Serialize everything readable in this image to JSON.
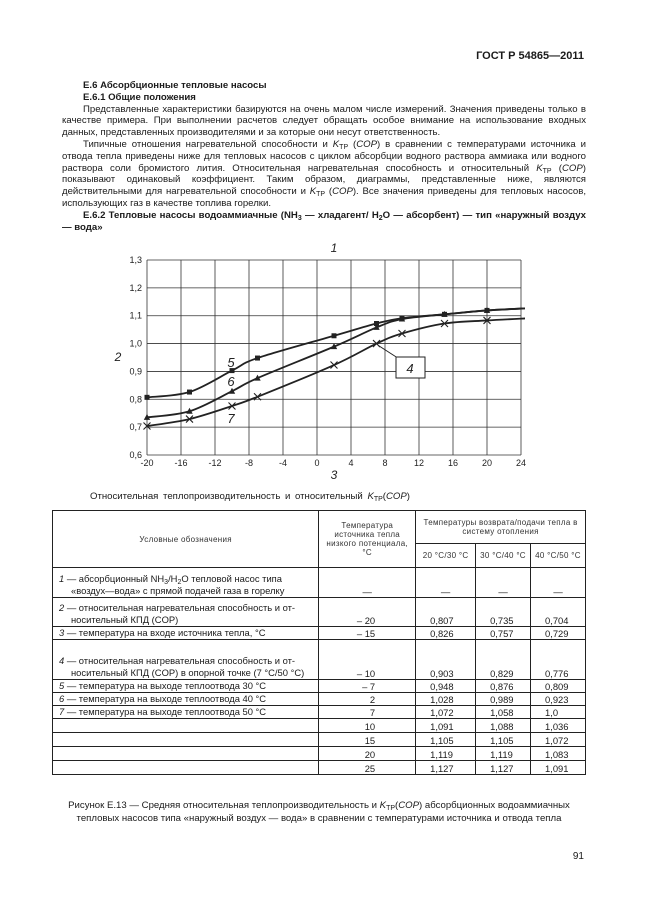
{
  "header": {
    "standard": "ГОСТ Р 54865—2011"
  },
  "text": {
    "section_title": "Е.6 Абсорбционные тепловые насосы",
    "subsection_title": "Е.6.1 Общие положения",
    "paragraph1": "Представленные характеристики базируются на очень малом числе измерений. Значения приведены только в качестве примера. При выполнении расчетов следует обращать особое внимание на использование входных данных, представленных производителями и за которые они несут ответственность.",
    "paragraph2": [
      {
        "t": "Типичные отношения нагревательной способности и "
      },
      {
        "t": "K",
        "i": true
      },
      {
        "t": "ТР",
        "sub": true
      },
      {
        "t": " ("
      },
      {
        "t": "COP",
        "i": true
      },
      {
        "t": ") в сравнении с температурами источника и отвода тепла приведены ниже для тепловых насосов с циклом абсорбции водного раствора аммиака или водного раствора соли бромистого лития. Относительная нагревательная способность и относительный "
      },
      {
        "t": "K",
        "i": true
      },
      {
        "t": "ТР",
        "sub": true
      },
      {
        "t": " ("
      },
      {
        "t": "COP",
        "i": true
      },
      {
        "t": ") показывают одинаковый коэффициент. Таким образом, диаграммы, представленные ниже, являются действительными для нагревательной способности и "
      },
      {
        "t": "K",
        "i": true
      },
      {
        "t": "ТР",
        "sub": true
      },
      {
        "t": " ("
      },
      {
        "t": "COP",
        "i": true
      },
      {
        "t": "). Все значения приведены для тепловых насосов, использующих газ в качестве топлива горелки."
      }
    ],
    "subsection2_title": [
      {
        "t": "Е.6.2 Тепловые насосы водоаммиачные (NH"
      },
      {
        "t": "3",
        "sub": true
      },
      {
        "t": " — хладагент/ H"
      },
      {
        "t": "2",
        "sub": true
      },
      {
        "t": "O — абсорбент) — тип «наружный воздух — вода»"
      }
    ]
  },
  "chart_data": {
    "type": "line",
    "xlim": [
      -20,
      24
    ],
    "ylim": [
      0.6,
      1.3
    ],
    "x_ticks": [
      "-20",
      "-16",
      "-12",
      "-8",
      "-4",
      "0",
      "4",
      "8",
      "12",
      "16",
      "20",
      "24"
    ],
    "y_ticks": [
      "0,6",
      "0,7",
      "0,8",
      "0,9",
      "1,0",
      "1,1",
      "1,2",
      "1,3"
    ],
    "grid": true,
    "top_label": "1",
    "ylabel": "2",
    "xlabel": "3",
    "callout_label": "4",
    "x": [
      -20,
      -15,
      -10,
      -7,
      2,
      7,
      10,
      15,
      20,
      25
    ],
    "series": [
      {
        "name": "5",
        "marker": "square",
        "values": [
          0.807,
          0.826,
          0.903,
          0.948,
          1.028,
          1.072,
          1.091,
          1.105,
          1.119,
          1.127
        ]
      },
      {
        "name": "6",
        "marker": "triangle",
        "values": [
          0.735,
          0.757,
          0.829,
          0.876,
          0.989,
          1.058,
          1.088,
          1.105,
          1.119,
          1.127
        ]
      },
      {
        "name": "7",
        "marker": "cross",
        "values": [
          0.704,
          0.729,
          0.776,
          0.809,
          0.923,
          1.0,
          1.036,
          1.072,
          1.083,
          1.091
        ]
      }
    ],
    "callout_point": {
      "x": 7,
      "y": 1.0
    },
    "line_color": "#222222"
  },
  "chart_caption": [
    {
      "t": "Относительная теплопроизводительность и относительный "
    },
    {
      "t": "K",
      "i": true
    },
    {
      "t": "ТР",
      "sub": true
    },
    {
      "t": "("
    },
    {
      "t": "COP",
      "i": true
    },
    {
      "t": ")"
    }
  ],
  "table": {
    "head": {
      "col1": "Условные обозначения",
      "col2": "Температура источника тепла низкого потенциала, °С",
      "group": "Температуры возврата/подачи тепла в систему отопления",
      "sub": [
        "20 °С/30 °С",
        "30 °С/40 °С",
        "40 °С/50 °С"
      ]
    },
    "legend_row": {
      "num": "1",
      "parts": [
        {
          "t": " — абсорбционный NH"
        },
        {
          "t": "3",
          "sub": true
        },
        {
          "t": "/H"
        },
        {
          "t": "2",
          "sub": true
        },
        {
          "t": "O тепловой насос типа"
        }
      ],
      "cont": "«воздух—вода» с прямой подачей газа в горелку",
      "values": [
        "—",
        "—",
        "—",
        "—"
      ]
    },
    "rows": [
      {
        "num": "2",
        "label": " — относительная нагревательная способность и от-",
        "cont": "носительный КПД (COP)",
        "temp": "– 20",
        "v": [
          "0,807",
          "0,735",
          "0,704"
        ]
      },
      {
        "num": "3",
        "label": " — температура на входе источника тепла, °С",
        "cont": "",
        "temp": "– 15",
        "v": [
          "0,826",
          "0,757",
          "0,729"
        ]
      },
      {
        "num": "4",
        "label": " — относительная нагревательная способность и от-",
        "cont": "носительный КПД (COP) в опорной точке (7 °С/50 °С)",
        "temp": "– 10",
        "v": [
          "0,903",
          "0,829",
          "0,776"
        ]
      },
      {
        "num": "5",
        "label": " — температура на выходе теплоотвода 30 °С",
        "cont": "",
        "temp": "– 7",
        "v": [
          "0,948",
          "0,876",
          "0,809"
        ]
      },
      {
        "num": "6",
        "label": " — температура на выходе теплоотвода 40 °С",
        "cont": "",
        "temp": "2",
        "v": [
          "1,028",
          "0,989",
          "0,923"
        ]
      },
      {
        "num": "7",
        "label": " — температура на выходе теплоотвода 50 °С",
        "cont": "",
        "temp": "7",
        "v": [
          "1,072",
          "1,058",
          "1,0"
        ]
      },
      {
        "num": "",
        "label": "",
        "cont": "",
        "temp": "10",
        "v": [
          "1,091",
          "1,088",
          "1,036"
        ]
      },
      {
        "num": "",
        "label": "",
        "cont": "",
        "temp": "15",
        "v": [
          "1,105",
          "1,105",
          "1,072"
        ]
      },
      {
        "num": "",
        "label": "",
        "cont": "",
        "temp": "20",
        "v": [
          "1,119",
          "1,119",
          "1,083"
        ]
      },
      {
        "num": "",
        "label": "",
        "cont": "",
        "temp": "25",
        "v": [
          "1,127",
          "1,127",
          "1,091"
        ]
      }
    ]
  },
  "figure_caption": [
    {
      "t": "Рисунок Е.13 — Средняя относительная теплопроизводительность и "
    },
    {
      "t": "K",
      "i": true
    },
    {
      "t": "ТР",
      "sub": true
    },
    {
      "t": "("
    },
    {
      "t": "COP",
      "i": true
    },
    {
      "t": ") абсорбционных водоаммиачных тепловых насосов типа «наружный воздух — вода» в сравнении с температурами источника и отвода тепла"
    }
  ],
  "page_number": "91"
}
